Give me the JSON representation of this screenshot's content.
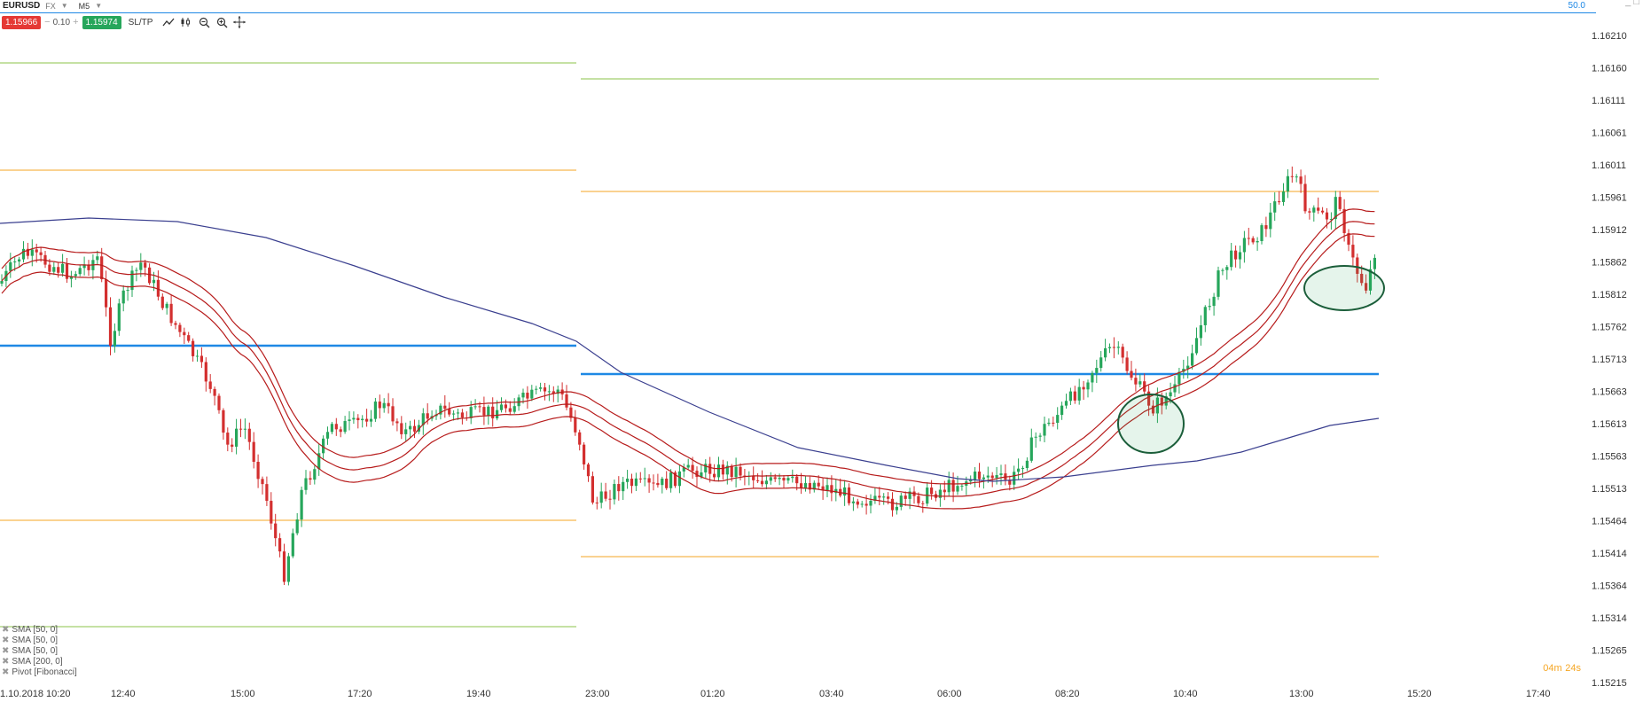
{
  "header": {
    "symbol": "EURUSD",
    "market": "FX",
    "timeframe": "M5",
    "top_value": "50.0"
  },
  "toolbar": {
    "sell_price": "1.15966",
    "lot": "0.10",
    "buy_price": "1.15974",
    "sltp_label": "SL/TP",
    "minus": "−",
    "plus": "+"
  },
  "legend": [
    {
      "label": "SMA [50, 0]"
    },
    {
      "label": "SMA [50, 0]"
    },
    {
      "label": "SMA [50, 0]"
    },
    {
      "label": "SMA [200, 0]"
    },
    {
      "label": "Pivot [Fibonacci]"
    }
  ],
  "timer": {
    "minutes": "04m",
    "seconds": "24s"
  },
  "colors": {
    "up": "#26a65b",
    "down": "#d32f2f",
    "sma50": "#b71c1c",
    "sma200": "#3a3f8f",
    "blue": "#1e88e5",
    "orange": "#f5a623",
    "green": "#8bc34a"
  },
  "chart_data": {
    "type": "candlestick",
    "y_ticks": [
      "1.16210",
      "1.16160",
      "1.16111",
      "1.16061",
      "1.16011",
      "1.15961",
      "1.15912",
      "1.15862",
      "1.15812",
      "1.15762",
      "1.15713",
      "1.15663",
      "1.15613",
      "1.15563",
      "1.15513",
      "1.15464",
      "1.15414",
      "1.15364",
      "1.15314",
      "1.15265",
      "1.15215"
    ],
    "x_ticks": [
      "1.10.2018 10:20",
      "12:40",
      "15:00",
      "17:20",
      "19:40",
      "23:00",
      "01:20",
      "03:40",
      "06:00",
      "08:20",
      "10:40",
      "13:00",
      "15:20",
      "17:40"
    ],
    "ylim": [
      1.15215,
      1.1623
    ]
  }
}
